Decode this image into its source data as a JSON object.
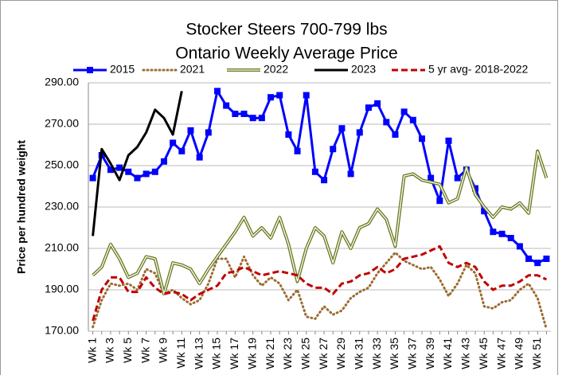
{
  "chart_data": {
    "type": "line",
    "title": [
      "Stocker Steers 700-799 lbs",
      "Ontario Weekly Average Price"
    ],
    "y_label": "Price per hundred weight",
    "categories": [
      "Wk 1",
      null,
      "Wk 3",
      null,
      "Wk 5",
      null,
      "Wk 7",
      null,
      "Wk 9",
      null,
      "Wk 11",
      null,
      "Wk 13",
      null,
      "Wk 15",
      null,
      "Wk 17",
      null,
      "Wk 19",
      null,
      "Wk 21",
      null,
      "Wk 23",
      null,
      "Wk 25",
      null,
      "Wk 27",
      null,
      "Wk 29",
      null,
      "Wk 31",
      null,
      "Wk 33",
      null,
      "Wk 35",
      null,
      "Wk 37",
      null,
      "Wk 39",
      null,
      "Wk 41",
      null,
      "Wk 43",
      null,
      "Wk 45",
      null,
      "Wk 47",
      null,
      "Wk 49",
      null,
      "Wk 51",
      null
    ],
    "ylim": [
      170,
      290
    ],
    "yticks": [
      {
        "value": 170,
        "label": "170.00"
      },
      {
        "value": 190,
        "label": "190.00"
      },
      {
        "value": 210,
        "label": "210.00"
      },
      {
        "value": 230,
        "label": "230.00"
      },
      {
        "value": 250,
        "label": "250.00"
      },
      {
        "value": 270,
        "label": "270.00"
      },
      {
        "value": 290,
        "label": "290.00"
      }
    ],
    "grid": true,
    "legend": "top",
    "series": [
      {
        "name": "2015",
        "color": "#0000ff",
        "style": "solid",
        "marker": "square",
        "values": [
          244,
          255,
          248,
          249,
          247,
          244,
          246,
          247,
          252,
          261,
          257,
          267,
          254,
          266,
          286,
          279,
          275,
          275,
          273,
          273,
          283,
          284,
          265,
          257,
          284,
          247,
          243,
          258,
          268,
          246,
          266,
          278,
          280,
          271,
          265,
          276,
          272,
          263,
          244,
          233,
          262,
          244,
          248,
          239,
          228,
          218,
          217,
          215,
          211,
          205,
          203,
          205
        ]
      },
      {
        "name": "2021",
        "color": "#9c6b30",
        "style": "dotted",
        "values": [
          172,
          185,
          193,
          192,
          193,
          190,
          200,
          198,
          188,
          190,
          186,
          183,
          185,
          193,
          205,
          205,
          196,
          206,
          197,
          192,
          196,
          193,
          185,
          190,
          177,
          176,
          182,
          178,
          180,
          186,
          189,
          191,
          198,
          203,
          208,
          204,
          202,
          200,
          201,
          195,
          187,
          193,
          202,
          198,
          182,
          181,
          184,
          185,
          190,
          193,
          186,
          171
        ]
      },
      {
        "name": "2022",
        "color": "#6b7a1f",
        "style": "double",
        "values": [
          197,
          201,
          212,
          205,
          196,
          198,
          206,
          205,
          188,
          203,
          202,
          200,
          193,
          200,
          206,
          212,
          218,
          225,
          216,
          220,
          215,
          225,
          212,
          194,
          210,
          220,
          216,
          203,
          218,
          210,
          220,
          222,
          229,
          224,
          211,
          245,
          246,
          243,
          242,
          241,
          232,
          234,
          249,
          236,
          230,
          225,
          230,
          229,
          232,
          227,
          257,
          244
        ]
      },
      {
        "name": "2023",
        "color": "#000000",
        "style": "solid",
        "values": [
          216,
          258,
          251,
          243,
          255,
          259,
          266,
          277,
          273,
          265,
          286,
          null,
          null,
          null,
          null,
          null,
          null,
          null,
          null,
          null,
          null,
          null,
          null,
          null,
          null,
          null,
          null,
          null,
          null,
          null,
          null,
          null,
          null,
          null,
          null,
          null,
          null,
          null,
          null,
          null,
          null,
          null,
          null,
          null,
          null,
          null,
          null,
          null,
          null,
          null,
          null,
          null
        ]
      },
      {
        "name": "5 yr avg- 2018-2022",
        "color": "#c00000",
        "style": "dashed",
        "values": [
          175,
          190,
          196,
          196,
          189,
          189,
          196,
          191,
          188,
          189,
          188,
          185,
          188,
          190,
          192,
          198,
          199,
          201,
          199,
          197,
          198,
          199,
          198,
          197,
          193,
          191,
          191,
          188,
          193,
          194,
          197,
          198,
          201,
          198,
          200,
          205,
          206,
          207,
          209,
          211,
          203,
          201,
          203,
          201,
          194,
          190,
          192,
          192,
          194,
          197,
          197,
          195
        ]
      }
    ]
  }
}
